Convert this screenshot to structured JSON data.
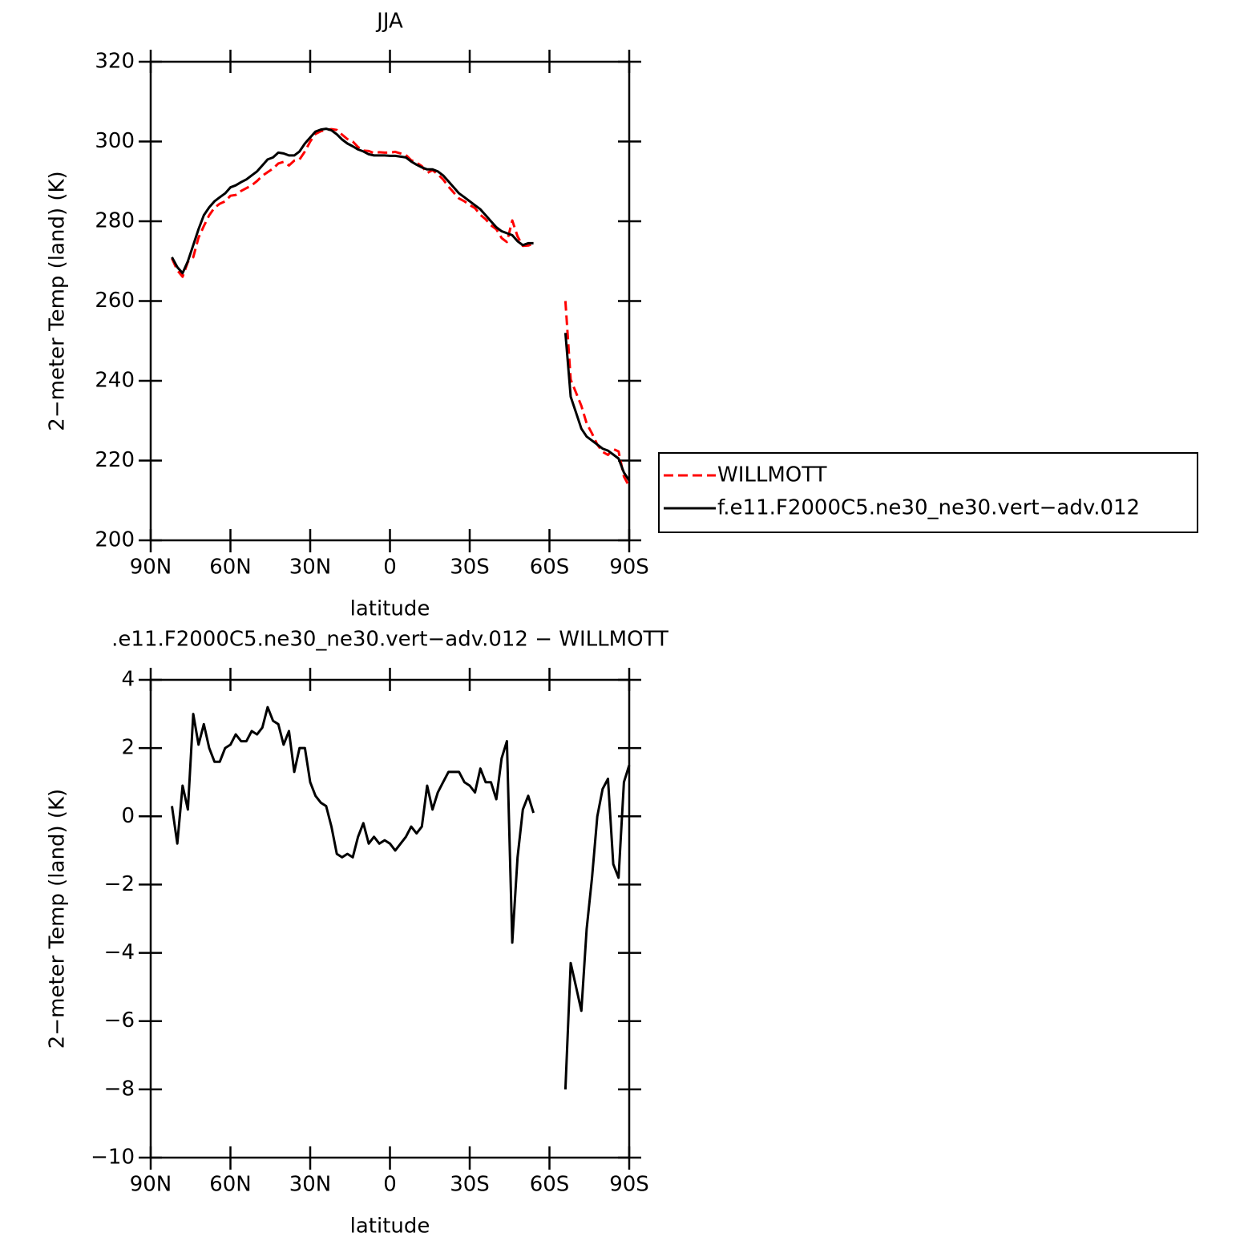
{
  "chart_data": [
    {
      "type": "line",
      "title": "JJA",
      "xlabel": "latitude",
      "ylabel": "2−meter Temp (land) (K)",
      "xlim": [
        90,
        -90
      ],
      "xticks": [
        {
          "value": 90,
          "label": "90N"
        },
        {
          "value": 60,
          "label": "60N"
        },
        {
          "value": 30,
          "label": "30N"
        },
        0,
        {
          "value": -30,
          "label": "30S"
        },
        {
          "value": -60,
          "label": "60S"
        },
        {
          "value": -90,
          "label": "90S"
        }
      ],
      "ylim": [
        200,
        320
      ],
      "yticks": [
        200,
        220,
        240,
        260,
        280,
        300,
        320
      ],
      "legend": "right",
      "x": [
        82,
        80,
        78,
        76,
        74,
        72,
        70,
        68,
        66,
        64,
        62,
        60,
        58,
        56,
        54,
        52,
        50,
        48,
        46,
        44,
        42,
        40,
        38,
        36,
        34,
        32,
        30,
        28,
        26,
        24,
        22,
        20,
        18,
        16,
        14,
        12,
        10,
        8,
        6,
        4,
        2,
        0,
        -2,
        -4,
        -6,
        -8,
        -10,
        -12,
        -14,
        -16,
        -18,
        -20,
        -22,
        -24,
        -26,
        -28,
        -30,
        -32,
        -34,
        -36,
        -38,
        -40,
        -42,
        -44,
        -46,
        -48,
        -50,
        -52,
        -54,
        -56,
        -58,
        -60,
        -62,
        -64,
        -66,
        -68,
        -70,
        -72,
        -74,
        -76,
        -78,
        -80,
        -82,
        -84,
        -86,
        -88,
        -90
      ],
      "series": [
        {
          "name": "WILLMOTT",
          "color": "#ff0000",
          "line_style": "dashed",
          "values": [
            270.7,
            267.7,
            266.1,
            269.8,
            271,
            275.9,
            278.8,
            281.5,
            283.4,
            284.4,
            285,
            286.4,
            286.6,
            287.6,
            288.3,
            289,
            290.1,
            291.4,
            292.3,
            293.2,
            294.5,
            294.9,
            294,
            295.2,
            295.5,
            297.5,
            300,
            301.9,
            302.6,
            302.9,
            303.1,
            302.9,
            301.7,
            300.6,
            300,
            298.6,
            297.7,
            297.6,
            297.1,
            297.3,
            297.2,
            297.2,
            297.4,
            297,
            296.6,
            295.3,
            294.7,
            293.8,
            292.1,
            292.8,
            291.8,
            290.5,
            288.7,
            287.2,
            285.7,
            285,
            284.1,
            283.3,
            281.6,
            280.5,
            279,
            278,
            275.8,
            274.8,
            280.2,
            276.2,
            273.8,
            273.9,
            274.4,
            null,
            null,
            null,
            null,
            null,
            260,
            240.3,
            237,
            233.7,
            229.3,
            226.8,
            224,
            222.2,
            221.4,
            222.9,
            222.3,
            216,
            213.5
          ]
        },
        {
          "name": "f.e11.F2000C5.ne30_ne30.vert−adv.012",
          "color": "#000000",
          "line_style": "solid",
          "values": [
            271,
            268.5,
            267,
            270,
            274,
            278,
            281.5,
            283.5,
            285,
            286,
            287,
            288.5,
            289,
            289.8,
            290.5,
            291.5,
            292.5,
            294,
            295.5,
            296,
            297.2,
            297,
            296.5,
            296.5,
            297.5,
            299.5,
            301,
            302.5,
            303,
            303.2,
            302.8,
            301.8,
            300.5,
            299.5,
            298.8,
            298,
            297.5,
            296.8,
            296.5,
            296.5,
            296.5,
            296.4,
            296.4,
            296.2,
            296,
            295,
            294.2,
            293.5,
            293,
            293,
            292.5,
            291.5,
            290,
            288.5,
            287,
            286,
            285,
            284,
            283,
            281.5,
            280,
            278.5,
            277.5,
            277,
            276.5,
            275,
            274,
            274.5,
            274.5,
            null,
            null,
            null,
            null,
            null,
            252,
            236,
            232,
            228,
            226,
            225,
            224,
            223,
            222.5,
            221.5,
            220.5,
            217,
            215
          ]
        }
      ]
    },
    {
      "type": "line",
      "title": ".e11.F2000C5.ne30_ne30.vert−adv.012 − WILLMOTT",
      "xlabel": "latitude",
      "ylabel": "2−meter Temp (land) (K)",
      "xlim": [
        90,
        -90
      ],
      "xticks": [
        {
          "value": 90,
          "label": "90N"
        },
        {
          "value": 60,
          "label": "60N"
        },
        {
          "value": 30,
          "label": "30N"
        },
        0,
        {
          "value": -30,
          "label": "30S"
        },
        {
          "value": -60,
          "label": "60S"
        },
        {
          "value": -90,
          "label": "90S"
        }
      ],
      "ylim": [
        -10,
        4
      ],
      "yticks": [
        {
          "value": -10,
          "label": "−10"
        },
        {
          "value": -8,
          "label": "−8"
        },
        {
          "value": -6,
          "label": "−6"
        },
        {
          "value": -4,
          "label": "−4"
        },
        {
          "value": -2,
          "label": "−2"
        },
        0,
        2,
        4
      ],
      "color": "#000000",
      "x": [
        82,
        80,
        78,
        76,
        74,
        72,
        70,
        68,
        66,
        64,
        62,
        60,
        58,
        56,
        54,
        52,
        50,
        48,
        46,
        44,
        42,
        40,
        38,
        36,
        34,
        32,
        30,
        28,
        26,
        24,
        22,
        20,
        18,
        16,
        14,
        12,
        10,
        8,
        6,
        4,
        2,
        0,
        -2,
        -4,
        -6,
        -8,
        -10,
        -12,
        -14,
        -16,
        -18,
        -20,
        -22,
        -24,
        -26,
        -28,
        -30,
        -32,
        -34,
        -36,
        -38,
        -40,
        -42,
        -44,
        -46,
        -48,
        -50,
        -52,
        -54,
        -56,
        -58,
        -60,
        -62,
        -64,
        -66,
        -68,
        -70,
        -72,
        -74,
        -76,
        -78,
        -80,
        -82,
        -84,
        -86,
        -88,
        -90
      ],
      "values": [
        0.3,
        -0.8,
        0.9,
        0.2,
        3.0,
        2.1,
        2.7,
        2.0,
        1.6,
        1.6,
        2.0,
        2.1,
        2.4,
        2.2,
        2.2,
        2.5,
        2.4,
        2.6,
        3.2,
        2.8,
        2.7,
        2.1,
        2.5,
        1.3,
        2.0,
        2.0,
        1.0,
        0.6,
        0.4,
        0.3,
        -0.3,
        -1.1,
        -1.2,
        -1.1,
        -1.2,
        -0.6,
        -0.2,
        -0.8,
        -0.6,
        -0.8,
        -0.7,
        -0.8,
        -1.0,
        -0.8,
        -0.6,
        -0.3,
        -0.5,
        -0.3,
        0.9,
        0.2,
        0.7,
        1.0,
        1.3,
        1.3,
        1.3,
        1.0,
        0.9,
        0.7,
        1.4,
        1.0,
        1.0,
        0.5,
        1.7,
        2.2,
        -3.7,
        -1.2,
        0.2,
        0.6,
        0.1,
        null,
        null,
        null,
        null,
        null,
        -8.0,
        -4.3,
        -5.0,
        -5.7,
        -3.3,
        -1.8,
        0,
        0.8,
        1.1,
        -1.4,
        -1.8,
        1.0,
        1.5
      ]
    }
  ]
}
